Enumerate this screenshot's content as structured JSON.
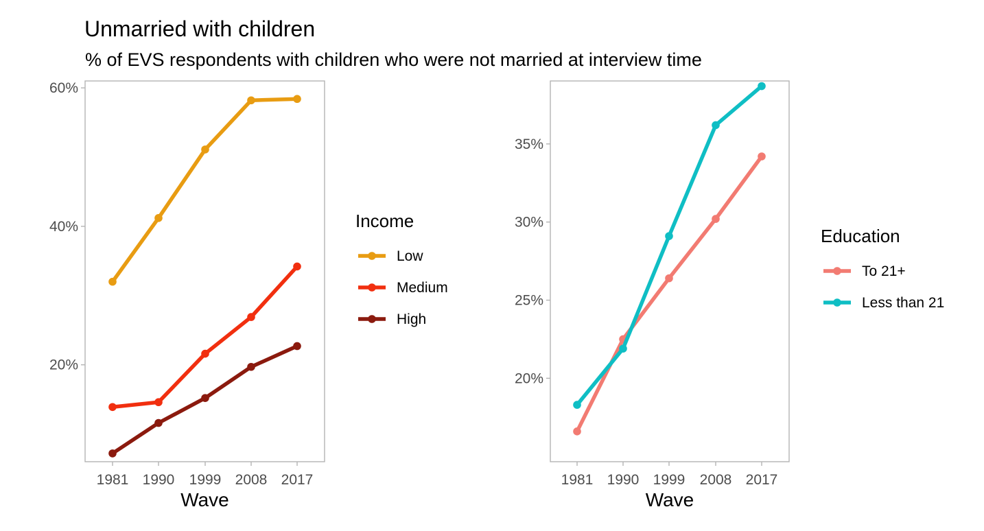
{
  "title": "Unmarried with children",
  "subtitle": "% of EVS respondents with children who were not married at interview time",
  "chart_data": [
    {
      "type": "line",
      "xlabel": "Wave",
      "ylabel": "",
      "categories": [
        "1981",
        "1990",
        "1999",
        "2008",
        "2017"
      ],
      "yticks": [
        0.2,
        0.4,
        0.6
      ],
      "ytick_labels": [
        "20%",
        "40%",
        "60%"
      ],
      "ylim": [
        0.06,
        0.61
      ],
      "grid": false,
      "legend_title": "Income",
      "legend_position": "right",
      "series": [
        {
          "name": "Low",
          "color": "#E89C12",
          "values": [
            0.32,
            0.412,
            0.511,
            0.582,
            0.584
          ]
        },
        {
          "name": "Medium",
          "color": "#F12F0F",
          "values": [
            0.139,
            0.146,
            0.216,
            0.269,
            0.342
          ]
        },
        {
          "name": "High",
          "color": "#8B1A0E",
          "values": [
            0.072,
            0.116,
            0.152,
            0.197,
            0.227
          ]
        }
      ]
    },
    {
      "type": "line",
      "xlabel": "Wave",
      "ylabel": "",
      "categories": [
        "1981",
        "1990",
        "1999",
        "2008",
        "2017"
      ],
      "yticks": [
        0.2,
        0.25,
        0.3,
        0.35
      ],
      "ytick_labels": [
        "20%",
        "25%",
        "30%",
        "35%"
      ],
      "ylim": [
        0.1466,
        0.3903
      ],
      "grid": false,
      "legend_title": "Education",
      "legend_position": "right",
      "series": [
        {
          "name": "To 21+",
          "color": "#F27B72",
          "values": [
            0.166,
            0.225,
            0.264,
            0.302,
            0.342
          ]
        },
        {
          "name": "Less than 21",
          "color": "#0FBEC4",
          "values": [
            0.183,
            0.219,
            0.291,
            0.362,
            0.387
          ]
        }
      ]
    }
  ]
}
